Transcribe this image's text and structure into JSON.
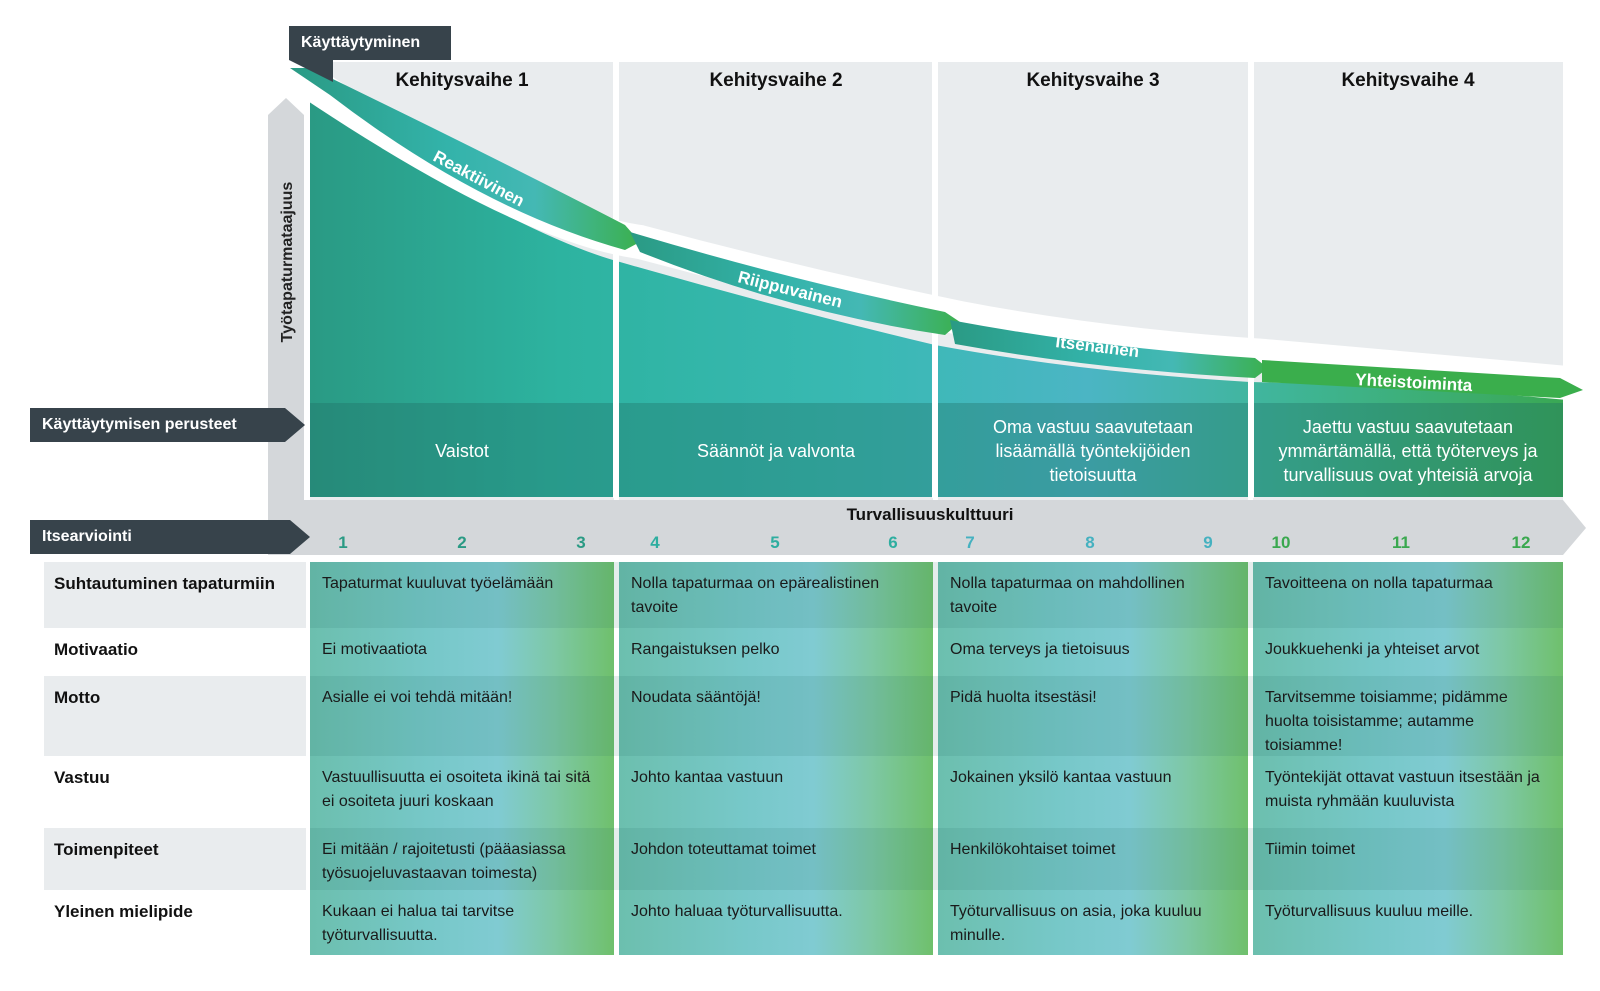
{
  "header": {
    "behaviour_tag": "Käyttäytyminen",
    "basis_tag": "Käyttäytymisen perusteet",
    "self_assessment_tag": "Itsearviointi",
    "y_axis_label": "Työtapaturmataajuus",
    "x_axis_label": "Turvallisuuskulttuuri"
  },
  "stages": [
    {
      "title": "Kehitysvaihe 1",
      "arrow_label": "Reaktiivinen",
      "basis": "Vaistot",
      "numbers": [
        "1",
        "2",
        "3"
      ]
    },
    {
      "title": "Kehitysvaihe 2",
      "arrow_label": "Riippuvainen",
      "basis": "Säännöt ja valvonta",
      "numbers": [
        "4",
        "5",
        "6"
      ]
    },
    {
      "title": "Kehitysvaihe 3",
      "arrow_label": "Itsenäinen",
      "basis": "Oma vastuu saavutetaan lisäämällä työntekijöiden tietoisuutta",
      "numbers": [
        "7",
        "8",
        "9"
      ]
    },
    {
      "title": "Kehitysvaihe 4",
      "arrow_label": "Yhteistoiminta",
      "basis": "Jaettu vastuu saavutetaan ymmärtämällä, että työterveys ja  turvallisuus ovat yhteisiä arvoja",
      "numbers": [
        "10",
        "11",
        "12"
      ]
    }
  ],
  "rows": [
    {
      "label": "Suhtautuminen tapaturmiin",
      "cells": [
        "Tapaturmat kuuluvat työelämään",
        "Nolla tapaturmaa on epärealistinen tavoite",
        "Nolla tapaturmaa on mahdollinen tavoite",
        "Tavoitteena on nolla tapaturmaa"
      ]
    },
    {
      "label": "Motivaatio",
      "cells": [
        "Ei motivaatiota",
        "Rangaistuksen pelko",
        "Oma terveys ja tietoisuus",
        "Joukkuehenki ja yhteiset arvot"
      ]
    },
    {
      "label": "Motto",
      "cells": [
        "Asialle ei voi tehdä mitään!",
        "Noudata sääntöjä!",
        "Pidä huolta itsestäsi!",
        "Tarvitsemme toisiamme; pidämme huolta toisistamme; autamme toisiamme!"
      ]
    },
    {
      "label": "Vastuu",
      "cells": [
        "Vastuullisuutta ei osoiteta ikinä tai sitä ei osoiteta juuri koskaan",
        "Johto kantaa vastuun",
        "Jokainen yksilö kantaa vastuun",
        "Työntekijät ottavat vastuun itsestään ja muista ryhmään kuuluvista"
      ]
    },
    {
      "label": "Toimenpiteet",
      "cells": [
        "Ei mitään / rajoitetusti (pääasiassa työsuojeluvastaavan toimesta)",
        "Johdon toteuttamat toimet",
        "Henkilökohtaiset toimet",
        "Tiimin toimet"
      ]
    },
    {
      "label": "Yleinen mielipide",
      "cells": [
        "Kukaan ei halua tai tarvitse työturvallisuutta.",
        "Johto haluaa työturvallisuutta.",
        "Työturvallisuus on asia, joka kuuluu minulle.",
        "Työturvallisuus kuuluu meille."
      ]
    }
  ],
  "colors": {
    "dark_tag": "#37434b",
    "column_bg": "#e9ecee",
    "stage1": "#2e9f8a",
    "stage2": "#33b5a8",
    "stage3": "#4ab3c2",
    "stage4": "#3fae5a"
  }
}
